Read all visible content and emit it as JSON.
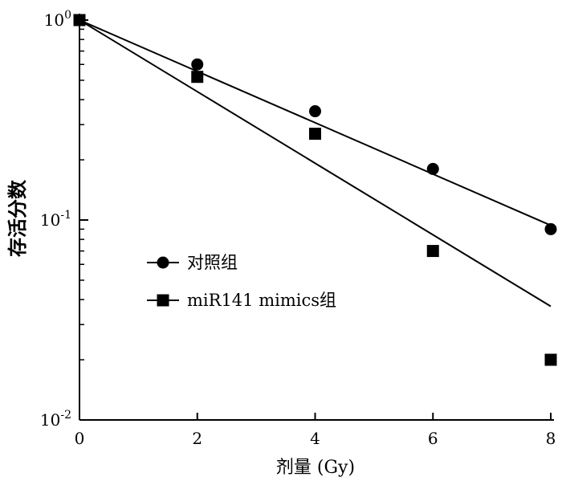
{
  "chart_data": {
    "type": "scatter",
    "title": "",
    "xlabel": "剂量 (Gy)",
    "ylabel": "存活分数",
    "yscale": "log",
    "xlim": [
      0,
      8
    ],
    "ylim": [
      0.01,
      1
    ],
    "xticks": [
      0,
      2,
      4,
      6,
      8
    ],
    "yticks": [
      {
        "value": 1,
        "base": "10",
        "exp": "0"
      },
      {
        "value": 0.1,
        "base": "10",
        "exp": "-1"
      },
      {
        "value": 0.01,
        "base": "10",
        "exp": "-2"
      }
    ],
    "grid": false,
    "legend_position": "center-left",
    "series": [
      {
        "name": "对照组",
        "marker": "circle",
        "x": [
          0,
          2,
          4,
          6,
          8
        ],
        "y": [
          1.0,
          0.6,
          0.35,
          0.18,
          0.09
        ],
        "fit": {
          "x": [
            0,
            8
          ],
          "y": [
            1.0,
            0.094
          ]
        }
      },
      {
        "name": "miR141 mimics组",
        "marker": "square",
        "x": [
          0,
          2,
          4,
          6,
          8
        ],
        "y": [
          1.0,
          0.52,
          0.27,
          0.07,
          0.02
        ],
        "fit": {
          "x": [
            0,
            8
          ],
          "y": [
            1.0,
            0.037
          ]
        }
      }
    ]
  }
}
